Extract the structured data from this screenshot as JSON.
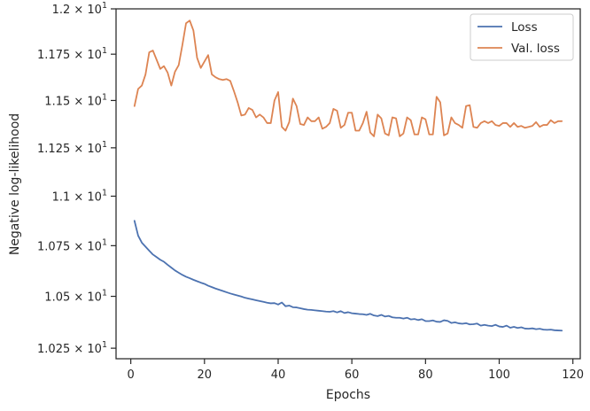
{
  "chart_data": {
    "type": "line",
    "xlabel": "Epochs",
    "ylabel": "Negative log-likelihood",
    "xlim": [
      -4,
      122
    ],
    "ylim": [
      10.2,
      12.0
    ],
    "y_scale": "log",
    "x_ticks": [
      0,
      20,
      40,
      60,
      80,
      100,
      120
    ],
    "x_tick_labels": [
      "0",
      "20",
      "40",
      "60",
      "80",
      "100",
      "120"
    ],
    "y_ticks": [
      10.25,
      10.5,
      10.75,
      11.0,
      11.25,
      11.5,
      11.75,
      12.0
    ],
    "y_tick_labels": [
      {
        "mantissa": "1.025",
        "base": "10",
        "exp": "1"
      },
      {
        "mantissa": "1.05",
        "base": "10",
        "exp": "1"
      },
      {
        "mantissa": "1.075",
        "base": "10",
        "exp": "1"
      },
      {
        "mantissa": "1.1",
        "base": "10",
        "exp": "1"
      },
      {
        "mantissa": "1.125",
        "base": "10",
        "exp": "1"
      },
      {
        "mantissa": "1.15",
        "base": "10",
        "exp": "1"
      },
      {
        "mantissa": "1.175",
        "base": "10",
        "exp": "1"
      },
      {
        "mantissa": "1.2",
        "base": "10",
        "exp": "1"
      }
    ],
    "grid": false,
    "legend_position": "top-right",
    "series": [
      {
        "name": "Loss",
        "color": "#4c72b0",
        "x": [
          1,
          2,
          3,
          4,
          5,
          6,
          7,
          8,
          9,
          10,
          11,
          12,
          13,
          14,
          15,
          16,
          17,
          18,
          19,
          20,
          21,
          22,
          23,
          24,
          25,
          26,
          27,
          28,
          29,
          30,
          31,
          32,
          33,
          34,
          35,
          36,
          37,
          38,
          39,
          40,
          41,
          42,
          43,
          44,
          45,
          46,
          47,
          48,
          49,
          50,
          51,
          52,
          53,
          54,
          55,
          56,
          57,
          58,
          59,
          60,
          61,
          62,
          63,
          64,
          65,
          66,
          67,
          68,
          69,
          70,
          71,
          72,
          73,
          74,
          75,
          76,
          77,
          78,
          79,
          80,
          81,
          82,
          83,
          84,
          85,
          86,
          87,
          88,
          89,
          90,
          91,
          92,
          93,
          94,
          95,
          96,
          97,
          98,
          99,
          100,
          101,
          102,
          103,
          104,
          105,
          106,
          107,
          108,
          109,
          110,
          111,
          112,
          113,
          114,
          115,
          116,
          117
        ],
        "y": [
          10.875,
          10.8,
          10.765,
          10.745,
          10.725,
          10.706,
          10.693,
          10.68,
          10.67,
          10.655,
          10.641,
          10.627,
          10.616,
          10.605,
          10.596,
          10.589,
          10.581,
          10.574,
          10.567,
          10.561,
          10.552,
          10.545,
          10.538,
          10.532,
          10.526,
          10.52,
          10.514,
          10.509,
          10.504,
          10.499,
          10.493,
          10.489,
          10.485,
          10.481,
          10.477,
          10.473,
          10.469,
          10.466,
          10.467,
          10.46,
          10.47,
          10.452,
          10.455,
          10.447,
          10.446,
          10.442,
          10.438,
          10.435,
          10.434,
          10.432,
          10.43,
          10.428,
          10.426,
          10.425,
          10.428,
          10.422,
          10.428,
          10.419,
          10.423,
          10.418,
          10.416,
          10.414,
          10.413,
          10.41,
          10.415,
          10.407,
          10.404,
          10.41,
          10.402,
          10.405,
          10.398,
          10.396,
          10.396,
          10.392,
          10.396,
          10.388,
          10.39,
          10.385,
          10.389,
          10.38,
          10.38,
          10.383,
          10.377,
          10.376,
          10.384,
          10.381,
          10.371,
          10.374,
          10.369,
          10.367,
          10.37,
          10.364,
          10.365,
          10.368,
          10.358,
          10.362,
          10.358,
          10.356,
          10.362,
          10.354,
          10.352,
          10.358,
          10.348,
          10.352,
          10.347,
          10.35,
          10.344,
          10.343,
          10.345,
          10.341,
          10.343,
          10.339,
          10.338,
          10.339,
          10.336,
          10.335,
          10.334
        ]
      },
      {
        "name": "Val. loss",
        "color": "#dd8452",
        "x": [
          1,
          2,
          3,
          4,
          5,
          6,
          7,
          8,
          9,
          10,
          11,
          12,
          13,
          14,
          15,
          16,
          17,
          18,
          19,
          20,
          21,
          22,
          23,
          24,
          25,
          26,
          27,
          28,
          29,
          30,
          31,
          32,
          33,
          34,
          35,
          36,
          37,
          38,
          39,
          40,
          41,
          42,
          43,
          44,
          45,
          46,
          47,
          48,
          49,
          50,
          51,
          52,
          53,
          54,
          55,
          56,
          57,
          58,
          59,
          60,
          61,
          62,
          63,
          64,
          65,
          66,
          67,
          68,
          69,
          70,
          71,
          72,
          73,
          74,
          75,
          76,
          77,
          78,
          79,
          80,
          81,
          82,
          83,
          84,
          85,
          86,
          87,
          88,
          89,
          90,
          91,
          92,
          93,
          94,
          95,
          96,
          97,
          98,
          99,
          100,
          101,
          102,
          103,
          104,
          105,
          106,
          107,
          108,
          109,
          110,
          111,
          112,
          113,
          114,
          115,
          116,
          117
        ],
        "y": [
          11.47,
          11.562,
          11.58,
          11.64,
          11.76,
          11.77,
          11.72,
          11.67,
          11.685,
          11.65,
          11.58,
          11.655,
          11.69,
          11.8,
          11.92,
          11.935,
          11.88,
          11.73,
          11.675,
          11.71,
          11.745,
          11.64,
          11.625,
          11.615,
          11.61,
          11.615,
          11.605,
          11.55,
          11.49,
          11.42,
          11.425,
          11.46,
          11.45,
          11.41,
          11.425,
          11.41,
          11.38,
          11.38,
          11.5,
          11.545,
          11.36,
          11.34,
          11.385,
          11.51,
          11.47,
          11.375,
          11.37,
          11.41,
          11.39,
          11.39,
          11.41,
          11.35,
          11.36,
          11.38,
          11.455,
          11.445,
          11.355,
          11.37,
          11.435,
          11.435,
          11.34,
          11.34,
          11.38,
          11.44,
          11.33,
          11.31,
          11.425,
          11.405,
          11.325,
          11.315,
          11.41,
          11.405,
          11.31,
          11.325,
          11.41,
          11.395,
          11.32,
          11.32,
          11.41,
          11.4,
          11.32,
          11.32,
          11.52,
          11.49,
          11.315,
          11.325,
          11.41,
          11.38,
          11.37,
          11.355,
          11.47,
          11.475,
          11.36,
          11.355,
          11.38,
          11.39,
          11.38,
          11.39,
          11.37,
          11.365,
          11.38,
          11.38,
          11.36,
          11.38,
          11.36,
          11.365,
          11.355,
          11.36,
          11.365,
          11.385,
          11.36,
          11.37,
          11.37,
          11.395,
          11.38,
          11.39,
          11.39
        ]
      }
    ]
  }
}
